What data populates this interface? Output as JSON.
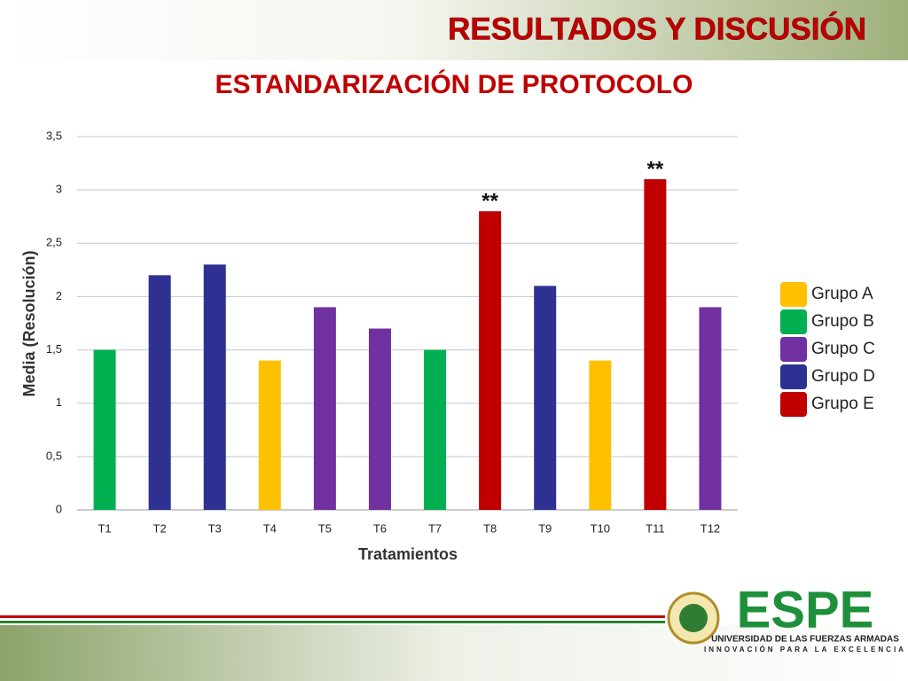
{
  "slide": {
    "heading": "RESULTADOS Y DISCUSIÓN",
    "logo": {
      "name": "ESPE",
      "line1": "UNIVERSIDAD DE LAS FUERZAS ARMADAS",
      "line2": "INNOVACIÓN PARA LA EXCELENCIA"
    }
  },
  "chart_data": {
    "type": "bar",
    "title": "ESTANDARIZACIÓN DE PROTOCOLO",
    "x_label": "Tratamientos",
    "y_label": "Media (Resolución)",
    "categories": [
      "T1",
      "T2",
      "T3",
      "T4",
      "T5",
      "T6",
      "T7",
      "T8",
      "T9",
      "T10",
      "T11",
      "T12"
    ],
    "series": [
      {
        "name": "Grupo A",
        "color": "#ffc000",
        "values": [
          null,
          null,
          null,
          1.4,
          null,
          null,
          null,
          null,
          null,
          1.4,
          null,
          null
        ]
      },
      {
        "name": "Grupo B",
        "color": "#00b050",
        "values": [
          1.5,
          null,
          null,
          null,
          null,
          null,
          1.5,
          null,
          null,
          null,
          null,
          null
        ]
      },
      {
        "name": "Grupo C",
        "color": "#7030a0",
        "values": [
          null,
          null,
          null,
          null,
          1.9,
          1.7,
          null,
          null,
          null,
          null,
          null,
          1.9
        ]
      },
      {
        "name": "Grupo D",
        "color": "#2e3192",
        "values": [
          null,
          2.2,
          2.3,
          null,
          null,
          null,
          null,
          null,
          2.1,
          null,
          null,
          null
        ]
      },
      {
        "name": "Grupo E",
        "color": "#c00000",
        "values": [
          null,
          null,
          null,
          null,
          null,
          null,
          null,
          2.8,
          null,
          null,
          3.1,
          null
        ]
      }
    ],
    "annotations": [
      {
        "label": "**",
        "category": "T8"
      },
      {
        "label": "**",
        "category": "T11"
      }
    ],
    "ylim": [
      0,
      3.5
    ],
    "yticks": [
      0,
      {
        "value": 0.5,
        "label": "0,5"
      },
      1,
      {
        "value": 1.5,
        "label": "1,5"
      },
      2,
      {
        "value": 2.5,
        "label": "2,5"
      },
      3,
      {
        "value": 3.5,
        "label": "3,5"
      }
    ],
    "grid": true,
    "legend": "right"
  }
}
